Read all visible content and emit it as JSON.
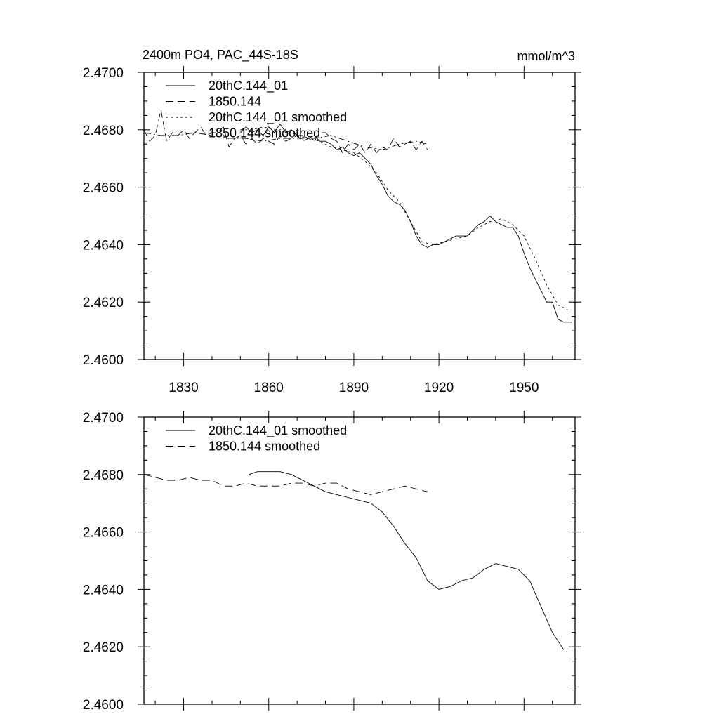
{
  "figure": {
    "title": "2400m PO4, PAC_44S-18S",
    "units": "mmol/m^3"
  },
  "colors": {
    "line": "#000000",
    "background": "#ffffff"
  },
  "chart_data": [
    {
      "type": "line",
      "panel": "top",
      "title": "2400m PO4, PAC_44S-18S",
      "units_label": "mmol/m^3",
      "xlim": [
        1816,
        1968
      ],
      "ylim": [
        2.46,
        2.47
      ],
      "x_ticks": [
        1830,
        1860,
        1890,
        1920,
        1950
      ],
      "x_tick_labels": [
        "1830",
        "1860",
        "1890",
        "1920",
        "1950"
      ],
      "y_ticks": [
        2.46,
        2.462,
        2.464,
        2.466,
        2.468,
        2.47
      ],
      "y_tick_labels": [
        "2.4600",
        "2.4620",
        "2.4640",
        "2.4660",
        "2.4680",
        "2.4700"
      ],
      "grid": false,
      "legend_position": "top-left",
      "series": [
        {
          "name": "20thC.144_01",
          "style": "solid",
          "x": [
            1850,
            1852,
            1854,
            1856,
            1858,
            1860,
            1862,
            1864,
            1866,
            1868,
            1870,
            1872,
            1874,
            1876,
            1878,
            1880,
            1882,
            1884,
            1886,
            1888,
            1890,
            1892,
            1894,
            1896,
            1898,
            1900,
            1902,
            1904,
            1906,
            1908,
            1910,
            1912,
            1914,
            1916,
            1918,
            1920,
            1922,
            1924,
            1926,
            1928,
            1930,
            1932,
            1934,
            1936,
            1938,
            1940,
            1942,
            1944,
            1946,
            1948,
            1950,
            1952,
            1954,
            1956,
            1958,
            1960,
            1962,
            1964,
            1966,
            1967
          ],
          "y": [
            2.4679,
            2.4681,
            2.4679,
            2.468,
            2.4678,
            2.4681,
            2.4679,
            2.4682,
            2.4679,
            2.468,
            2.4678,
            2.4678,
            2.4677,
            2.4678,
            2.4676,
            2.4676,
            2.4675,
            2.4673,
            2.4674,
            2.4672,
            2.4671,
            2.4672,
            2.467,
            2.4668,
            2.4664,
            2.4661,
            2.4657,
            2.4655,
            2.4654,
            2.4652,
            2.4648,
            2.4643,
            2.464,
            2.4639,
            2.464,
            2.464,
            2.4641,
            2.4642,
            2.4643,
            2.4643,
            2.4643,
            2.4645,
            2.4647,
            2.4648,
            2.465,
            2.4648,
            2.4647,
            2.4646,
            2.4646,
            2.4643,
            2.4637,
            2.4632,
            2.4628,
            2.4624,
            2.462,
            2.462,
            2.4614,
            2.4613,
            2.4613,
            2.4613
          ]
        },
        {
          "name": "1850.144",
          "style": "dashed",
          "x": [
            1816,
            1818,
            1820,
            1822,
            1824,
            1826,
            1828,
            1830,
            1832,
            1834,
            1836,
            1838,
            1840,
            1842,
            1844,
            1846,
            1848,
            1850,
            1852,
            1854,
            1856,
            1858,
            1860,
            1862,
            1864,
            1866,
            1868,
            1870,
            1872,
            1874,
            1876,
            1878,
            1880,
            1882,
            1884,
            1886,
            1888,
            1890,
            1892,
            1894,
            1896,
            1898,
            1900,
            1902,
            1904,
            1906,
            1908,
            1910,
            1912,
            1914,
            1916
          ],
          "y": [
            2.468,
            2.4676,
            2.4678,
            2.4687,
            2.4676,
            2.4679,
            2.4678,
            2.468,
            2.4677,
            2.4679,
            2.4681,
            2.4678,
            2.4679,
            2.4679,
            2.4681,
            2.4674,
            2.4677,
            2.4678,
            2.4675,
            2.4677,
            2.4675,
            2.4677,
            2.4676,
            2.4675,
            2.4678,
            2.4676,
            2.4677,
            2.4678,
            2.4676,
            2.4677,
            2.4676,
            2.4679,
            2.4679,
            2.4677,
            2.4676,
            2.4672,
            2.4675,
            2.4673,
            2.4675,
            2.4672,
            2.4675,
            2.4672,
            2.4674,
            2.4673,
            2.4677,
            2.4674,
            2.4675,
            2.4676,
            2.4673,
            2.4676,
            2.4673
          ]
        },
        {
          "name": "20thC.144_01 smoothed",
          "style": "dotted",
          "x": [
            1850,
            1854,
            1858,
            1862,
            1866,
            1870,
            1874,
            1878,
            1882,
            1886,
            1890,
            1894,
            1898,
            1902,
            1906,
            1910,
            1914,
            1918,
            1922,
            1926,
            1930,
            1934,
            1938,
            1942,
            1946,
            1950,
            1954,
            1958,
            1962,
            1966
          ],
          "y": [
            2.468,
            2.468,
            2.4681,
            2.468,
            2.468,
            2.4678,
            2.4677,
            2.4676,
            2.4674,
            2.4673,
            2.4672,
            2.4669,
            2.4665,
            2.4659,
            2.4655,
            2.4648,
            2.4641,
            2.464,
            2.4641,
            2.4642,
            2.4643,
            2.4646,
            2.4648,
            2.4649,
            2.4647,
            2.4643,
            2.4635,
            2.4626,
            2.4619,
            2.4617
          ]
        },
        {
          "name": "1850.144 smoothed",
          "style": "dash-dot",
          "x": [
            1816,
            1822,
            1828,
            1834,
            1840,
            1846,
            1852,
            1858,
            1864,
            1870,
            1876,
            1882,
            1888,
            1894,
            1900,
            1906,
            1912,
            1916
          ],
          "y": [
            2.4679,
            2.4678,
            2.4678,
            2.4679,
            2.4678,
            2.4677,
            2.4677,
            2.4676,
            2.4677,
            2.4677,
            2.4677,
            2.4678,
            2.4676,
            2.4674,
            2.4673,
            2.4675,
            2.4676,
            2.4675
          ]
        }
      ]
    },
    {
      "type": "line",
      "panel": "bottom",
      "xlim": [
        1816,
        1968
      ],
      "ylim": [
        2.46,
        2.47
      ],
      "x_ticks": [
        1830,
        1860,
        1890,
        1920,
        1950
      ],
      "y_ticks": [
        2.46,
        2.462,
        2.464,
        2.466,
        2.468,
        2.47
      ],
      "y_tick_labels": [
        "2.4600",
        "2.4620",
        "2.4640",
        "2.4660",
        "2.4680",
        "2.4700"
      ],
      "grid": false,
      "legend_position": "top-left",
      "series": [
        {
          "name": "20thC.144_01 smoothed",
          "style": "solid",
          "x": [
            1853,
            1856,
            1860,
            1864,
            1868,
            1872,
            1876,
            1880,
            1884,
            1888,
            1892,
            1896,
            1900,
            1904,
            1908,
            1912,
            1916,
            1920,
            1924,
            1928,
            1932,
            1936,
            1940,
            1944,
            1948,
            1952,
            1956,
            1960,
            1964
          ],
          "y": [
            2.468,
            2.4681,
            2.4681,
            2.4681,
            2.468,
            2.4678,
            2.4676,
            2.4674,
            2.4673,
            2.4672,
            2.4671,
            2.467,
            2.4667,
            2.4662,
            2.4656,
            2.4651,
            2.4643,
            2.464,
            2.4641,
            2.4643,
            2.4644,
            2.4647,
            2.4649,
            2.4648,
            2.4647,
            2.4643,
            2.4634,
            2.4625,
            2.4619
          ]
        },
        {
          "name": "1850.144 smoothed",
          "style": "dashed",
          "x": [
            1816,
            1820,
            1824,
            1828,
            1832,
            1836,
            1840,
            1844,
            1848,
            1852,
            1856,
            1860,
            1864,
            1868,
            1872,
            1876,
            1880,
            1884,
            1888,
            1892,
            1896,
            1900,
            1904,
            1908,
            1912,
            1916
          ],
          "y": [
            2.468,
            2.4679,
            2.4678,
            2.4678,
            2.4679,
            2.4678,
            2.4678,
            2.4676,
            2.4676,
            2.4677,
            2.4676,
            2.4676,
            2.4676,
            2.4677,
            2.4677,
            2.4676,
            2.4677,
            2.4677,
            2.4675,
            2.4674,
            2.4673,
            2.4674,
            2.4675,
            2.4676,
            2.4675,
            2.4674
          ]
        }
      ]
    }
  ]
}
